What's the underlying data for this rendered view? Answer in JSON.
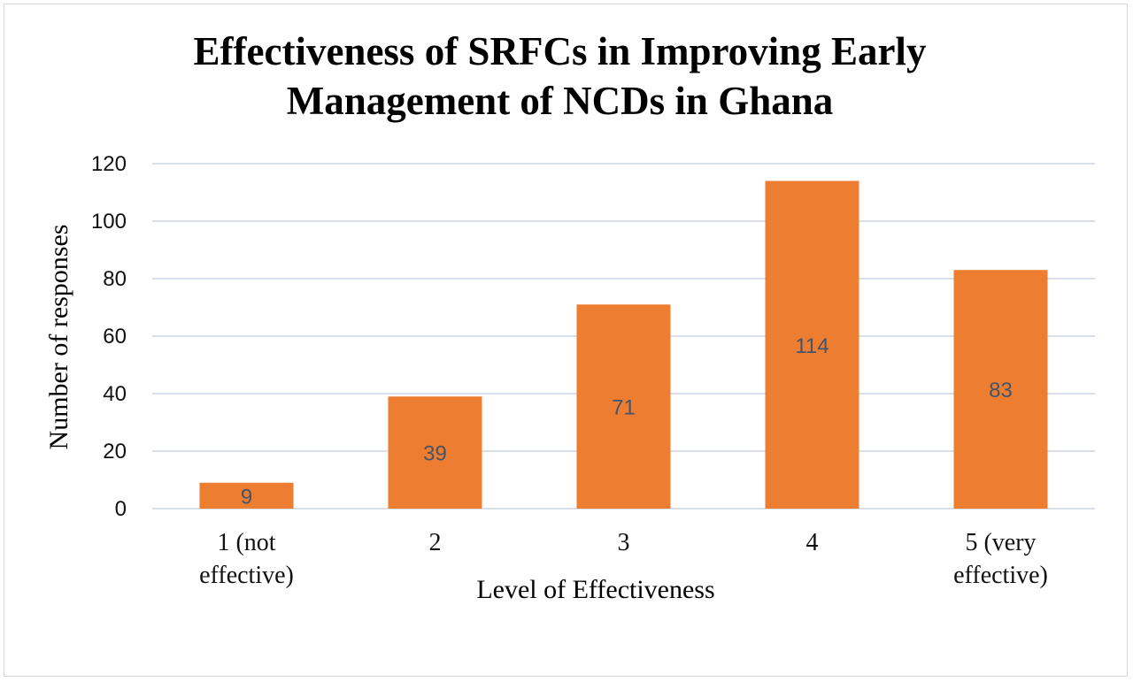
{
  "chart_data": {
    "type": "bar",
    "title_lines": [
      "Effectiveness of SRFCs in Improving Early",
      "Management of NCDs in Ghana"
    ],
    "xlabel": "Level of Effectiveness",
    "ylabel": "Number of responses",
    "categories": [
      [
        "1 (not",
        "effective)"
      ],
      [
        "2"
      ],
      [
        "3"
      ],
      [
        "4"
      ],
      [
        "5 (very",
        "effective)"
      ]
    ],
    "values": [
      9,
      39,
      71,
      114,
      83
    ],
    "ylim": [
      0,
      120
    ],
    "yticks": [
      0,
      20,
      40,
      60,
      80,
      100,
      120
    ],
    "grid": true,
    "bar_color": "#ed7d31",
    "grid_color": "#d9dfe8",
    "data_label_color": "#44546a"
  }
}
